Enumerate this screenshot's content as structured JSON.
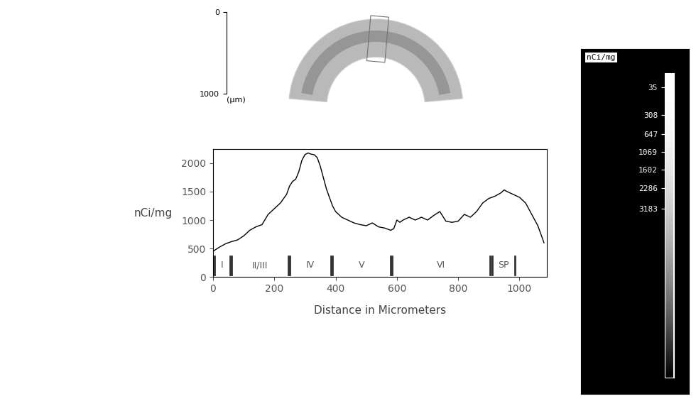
{
  "chart_data": {
    "type": "line",
    "x_label": "Distance in Micrometers",
    "y_label": "nCi/mg",
    "x": [
      0,
      20,
      40,
      60,
      80,
      100,
      120,
      140,
      160,
      180,
      200,
      220,
      240,
      250,
      260,
      270,
      280,
      290,
      300,
      310,
      320,
      330,
      340,
      350,
      360,
      370,
      380,
      390,
      400,
      420,
      440,
      460,
      480,
      500,
      520,
      540,
      560,
      580,
      590,
      600,
      610,
      620,
      640,
      660,
      680,
      700,
      720,
      740,
      760,
      780,
      800,
      820,
      840,
      860,
      880,
      900,
      920,
      940,
      950,
      960,
      980,
      1000,
      1020,
      1040,
      1060,
      1080
    ],
    "values": [
      450,
      520,
      580,
      620,
      650,
      720,
      820,
      880,
      920,
      1100,
      1200,
      1300,
      1450,
      1600,
      1680,
      1720,
      1850,
      2050,
      2150,
      2180,
      2160,
      2150,
      2100,
      1950,
      1750,
      1550,
      1400,
      1250,
      1150,
      1050,
      1000,
      950,
      920,
      900,
      950,
      880,
      860,
      820,
      850,
      1000,
      960,
      1000,
      1050,
      1000,
      1050,
      1000,
      1080,
      1150,
      980,
      960,
      980,
      1100,
      1050,
      1150,
      1300,
      1380,
      1420,
      1480,
      1530,
      1500,
      1450,
      1400,
      1300,
      1100,
      900,
      600
    ],
    "color": "#000000",
    "xlim": [
      0,
      1090
    ],
    "xticks": [
      0,
      200,
      400,
      600,
      800,
      1000
    ],
    "ylim": [
      0,
      2250
    ],
    "yticks": [
      0,
      500,
      1000,
      1500,
      2000
    ],
    "grid": false,
    "layers": [
      {
        "label": "I",
        "start": 5,
        "end": 55
      },
      {
        "label": "II/III",
        "start": 60,
        "end": 245
      },
      {
        "label": "IV",
        "start": 250,
        "end": 385
      },
      {
        "label": "V",
        "start": 390,
        "end": 580
      },
      {
        "label": "VI",
        "start": 585,
        "end": 905
      },
      {
        "label": "SP",
        "start": 910,
        "end": 985
      }
    ],
    "scale_bar": {
      "ticks": [
        0,
        1000
      ],
      "unit": "(µm)"
    },
    "colorbar": {
      "title": "nCi/mg",
      "range": [
        0,
        16000
      ],
      "ticks": [
        35,
        308,
        647,
        1069,
        1602,
        2286,
        3183
      ]
    }
  }
}
